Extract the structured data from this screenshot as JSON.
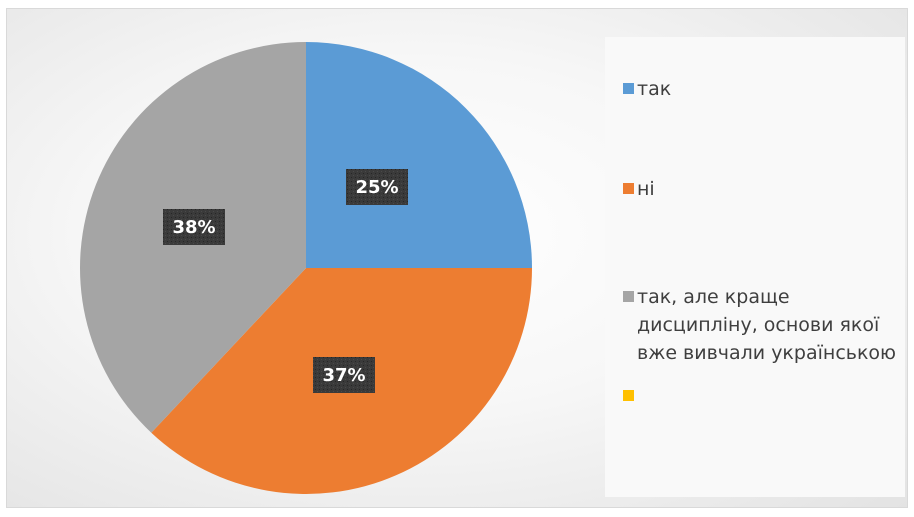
{
  "chart_data": {
    "type": "pie",
    "title": "",
    "categories": [
      "так",
      "ні",
      "так, але краще дисципліну, основи якої вже вивчали українською",
      ""
    ],
    "values": [
      25,
      37,
      38,
      0
    ],
    "data_labels": [
      "25%",
      "37%",
      "38%",
      ""
    ],
    "colors": [
      "#5b9bd5",
      "#ed7d31",
      "#a5a5a5",
      "#ffc000"
    ],
    "start_angle_deg": 0,
    "direction": "clockwise",
    "legend_position": "right",
    "legend": [
      {
        "label": "так",
        "color": "#5b9bd5"
      },
      {
        "label": "ні",
        "color": "#ed7d31"
      },
      {
        "label": "так, але краще дисципліну, основи якої вже вивчали українською",
        "color": "#a5a5a5"
      },
      {
        "label": "",
        "color": "#ffc000"
      }
    ]
  }
}
